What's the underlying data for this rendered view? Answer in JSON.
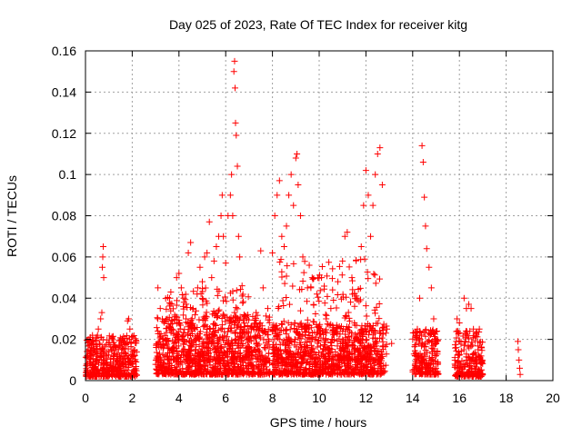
{
  "chart_data": {
    "type": "scatter",
    "title": "Day 025 of 2023, Rate Of TEC Index for receiver kitg",
    "xlabel": "GPS time / hours",
    "ylabel": "ROTI / TECUs",
    "xlim": [
      0,
      20
    ],
    "ylim": [
      0,
      0.16
    ],
    "xticks": [
      0,
      2,
      4,
      6,
      8,
      10,
      12,
      14,
      16,
      18,
      20
    ],
    "yticks": [
      0,
      0.02,
      0.04,
      0.06,
      0.08,
      0.1,
      0.12,
      0.14,
      0.16
    ],
    "xtick_labels": [
      "0",
      "2",
      "4",
      "6",
      "8",
      "10",
      "12",
      "14",
      "16",
      "18",
      "20"
    ],
    "ytick_labels": [
      "0",
      "0.02",
      "0.04",
      "0.06",
      "0.08",
      "0.1",
      "0.12",
      "0.14",
      "0.16"
    ],
    "grid": true,
    "marker": "+",
    "color": "#ff0000",
    "series": [
      {
        "name": "ROTI",
        "points": [
          [
            0.05,
            0.005
          ],
          [
            0.1,
            0.012
          ],
          [
            0.15,
            0.02
          ],
          [
            0.2,
            0.008
          ],
          [
            0.25,
            0.016
          ],
          [
            0.3,
            0.022
          ],
          [
            0.35,
            0.006
          ],
          [
            0.4,
            0.014
          ],
          [
            0.45,
            0.019
          ],
          [
            0.5,
            0.01
          ],
          [
            0.55,
            0.025
          ],
          [
            0.6,
            0.018
          ],
          [
            0.65,
            0.03
          ],
          [
            0.7,
            0.033
          ],
          [
            0.72,
            0.055
          ],
          [
            0.74,
            0.06
          ],
          [
            0.76,
            0.065
          ],
          [
            0.78,
            0.05
          ],
          [
            0.8,
            0.012
          ],
          [
            0.9,
            0.008
          ],
          [
            1.0,
            0.014
          ],
          [
            1.1,
            0.006
          ],
          [
            1.2,
            0.012
          ],
          [
            1.3,
            0.009
          ],
          [
            1.4,
            0.016
          ],
          [
            1.5,
            0.011
          ],
          [
            1.6,
            0.007
          ],
          [
            1.7,
            0.013
          ],
          [
            1.8,
            0.029
          ],
          [
            1.85,
            0.03
          ],
          [
            1.9,
            0.025
          ],
          [
            1.95,
            0.018
          ],
          [
            2.0,
            0.008
          ],
          [
            2.1,
            0.012
          ],
          [
            3.1,
            0.045
          ],
          [
            3.2,
            0.035
          ],
          [
            3.3,
            0.02
          ],
          [
            3.4,
            0.012
          ],
          [
            3.5,
            0.03
          ],
          [
            3.6,
            0.04
          ],
          [
            3.7,
            0.025
          ],
          [
            3.8,
            0.018
          ],
          [
            3.9,
            0.05
          ],
          [
            4.0,
            0.052
          ],
          [
            4.1,
            0.045
          ],
          [
            4.2,
            0.04
          ],
          [
            4.3,
            0.03
          ],
          [
            4.4,
            0.062
          ],
          [
            4.5,
            0.067
          ],
          [
            4.6,
            0.035
          ],
          [
            4.7,
            0.02
          ],
          [
            4.8,
            0.045
          ],
          [
            4.9,
            0.055
          ],
          [
            5.0,
            0.048
          ],
          [
            5.1,
            0.06
          ],
          [
            5.2,
            0.062
          ],
          [
            5.3,
            0.077
          ],
          [
            5.4,
            0.05
          ],
          [
            5.5,
            0.058
          ],
          [
            5.6,
            0.065
          ],
          [
            5.7,
            0.07
          ],
          [
            5.8,
            0.08
          ],
          [
            5.85,
            0.09
          ],
          [
            5.9,
            0.07
          ],
          [
            6.0,
            0.057
          ],
          [
            6.1,
            0.08
          ],
          [
            6.2,
            0.09
          ],
          [
            6.25,
            0.1
          ],
          [
            6.3,
            0.08
          ],
          [
            6.35,
            0.15
          ],
          [
            6.38,
            0.155
          ],
          [
            6.4,
            0.142
          ],
          [
            6.42,
            0.125
          ],
          [
            6.45,
            0.119
          ],
          [
            6.5,
            0.104
          ],
          [
            6.55,
            0.07
          ],
          [
            6.6,
            0.06
          ],
          [
            6.7,
            0.046
          ],
          [
            6.9,
            0.03
          ],
          [
            7.1,
            0.025
          ],
          [
            7.3,
            0.033
          ],
          [
            7.5,
            0.063
          ],
          [
            7.6,
            0.045
          ],
          [
            7.8,
            0.035
          ],
          [
            8.0,
            0.062
          ],
          [
            8.1,
            0.08
          ],
          [
            8.2,
            0.09
          ],
          [
            8.3,
            0.097
          ],
          [
            8.4,
            0.07
          ],
          [
            8.5,
            0.065
          ],
          [
            8.6,
            0.075
          ],
          [
            8.7,
            0.09
          ],
          [
            8.8,
            0.1
          ],
          [
            8.9,
            0.085
          ],
          [
            9.0,
            0.108
          ],
          [
            9.05,
            0.11
          ],
          [
            9.1,
            0.095
          ],
          [
            9.2,
            0.08
          ],
          [
            9.3,
            0.06
          ],
          [
            9.5,
            0.045
          ],
          [
            9.7,
            0.05
          ],
          [
            9.9,
            0.042
          ],
          [
            10.1,
            0.05
          ],
          [
            10.3,
            0.03
          ],
          [
            10.5,
            0.035
          ],
          [
            10.8,
            0.048
          ],
          [
            11.0,
            0.058
          ],
          [
            11.1,
            0.07
          ],
          [
            11.2,
            0.072
          ],
          [
            11.4,
            0.05
          ],
          [
            11.6,
            0.04
          ],
          [
            11.8,
            0.065
          ],
          [
            11.9,
            0.085
          ],
          [
            12.0,
            0.102
          ],
          [
            12.1,
            0.09
          ],
          [
            12.2,
            0.07
          ],
          [
            12.3,
            0.085
          ],
          [
            12.4,
            0.1
          ],
          [
            12.5,
            0.11
          ],
          [
            12.6,
            0.113
          ],
          [
            12.7,
            0.095
          ],
          [
            12.9,
            0.025
          ],
          [
            13.1,
            0.018
          ],
          [
            14.2,
            0.025
          ],
          [
            14.3,
            0.04
          ],
          [
            14.4,
            0.114
          ],
          [
            14.45,
            0.106
          ],
          [
            14.5,
            0.089
          ],
          [
            14.55,
            0.075
          ],
          [
            14.6,
            0.064
          ],
          [
            14.7,
            0.055
          ],
          [
            14.8,
            0.045
          ],
          [
            14.9,
            0.03
          ],
          [
            15.0,
            0.02
          ],
          [
            15.9,
            0.03
          ],
          [
            16.0,
            0.028
          ],
          [
            16.2,
            0.04
          ],
          [
            16.3,
            0.035
          ],
          [
            16.4,
            0.037
          ],
          [
            16.5,
            0.035
          ],
          [
            16.6,
            0.025
          ],
          [
            16.8,
            0.015
          ],
          [
            18.5,
            0.019
          ],
          [
            18.52,
            0.015
          ],
          [
            18.55,
            0.01
          ],
          [
            18.58,
            0.006
          ],
          [
            18.6,
            0.003
          ]
        ],
        "bands": [
          {
            "x": [
              0.0,
              2.2
            ],
            "y": [
              0.002,
              0.022
            ],
            "count": 420
          },
          {
            "x": [
              3.0,
              7.9
            ],
            "y": [
              0.003,
              0.032
            ],
            "count": 900
          },
          {
            "x": [
              3.4,
              7.0
            ],
            "y": [
              0.01,
              0.045
            ],
            "count": 260
          },
          {
            "x": [
              8.0,
              12.9
            ],
            "y": [
              0.003,
              0.028
            ],
            "count": 850
          },
          {
            "x": [
              8.2,
              12.6
            ],
            "y": [
              0.01,
              0.06
            ],
            "count": 260
          },
          {
            "x": [
              14.0,
              15.1
            ],
            "y": [
              0.003,
              0.025
            ],
            "count": 200
          },
          {
            "x": [
              15.8,
              17.0
            ],
            "y": [
              0.002,
              0.025
            ],
            "count": 220
          }
        ]
      }
    ]
  }
}
